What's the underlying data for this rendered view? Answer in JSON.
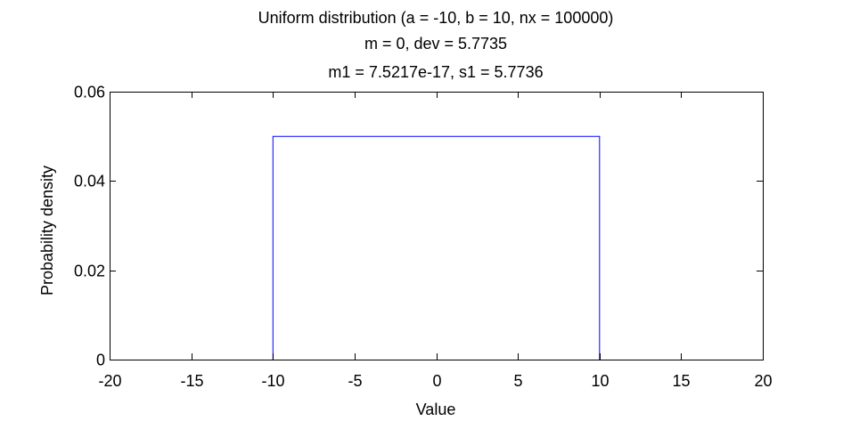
{
  "chart_data": {
    "type": "line",
    "title_lines": [
      "Uniform distribution (a = -10, b = 10, nx = 100000)",
      "m = 0, dev = 5.7735",
      "m1 = 7.5217e-17, s1 = 5.7736"
    ],
    "xlabel": "Value",
    "ylabel": "Probability density",
    "xlim": [
      -20,
      20
    ],
    "ylim": [
      0,
      0.06
    ],
    "x_ticks": [
      -20,
      -15,
      -10,
      -5,
      0,
      5,
      10,
      15,
      20
    ],
    "x_tick_labels": [
      "-20",
      "-15",
      "-10",
      "-5",
      "0",
      "5",
      "10",
      "15",
      "20"
    ],
    "y_ticks": [
      0,
      0.02,
      0.04,
      0.06
    ],
    "y_tick_labels": [
      "0",
      "0.02",
      "0.04",
      "0.06"
    ],
    "grid": false,
    "series": [
      {
        "color": "#0000ff",
        "x": [
          -10,
          -10,
          10,
          10
        ],
        "y": [
          0,
          0.05,
          0.05,
          0
        ]
      }
    ]
  }
}
